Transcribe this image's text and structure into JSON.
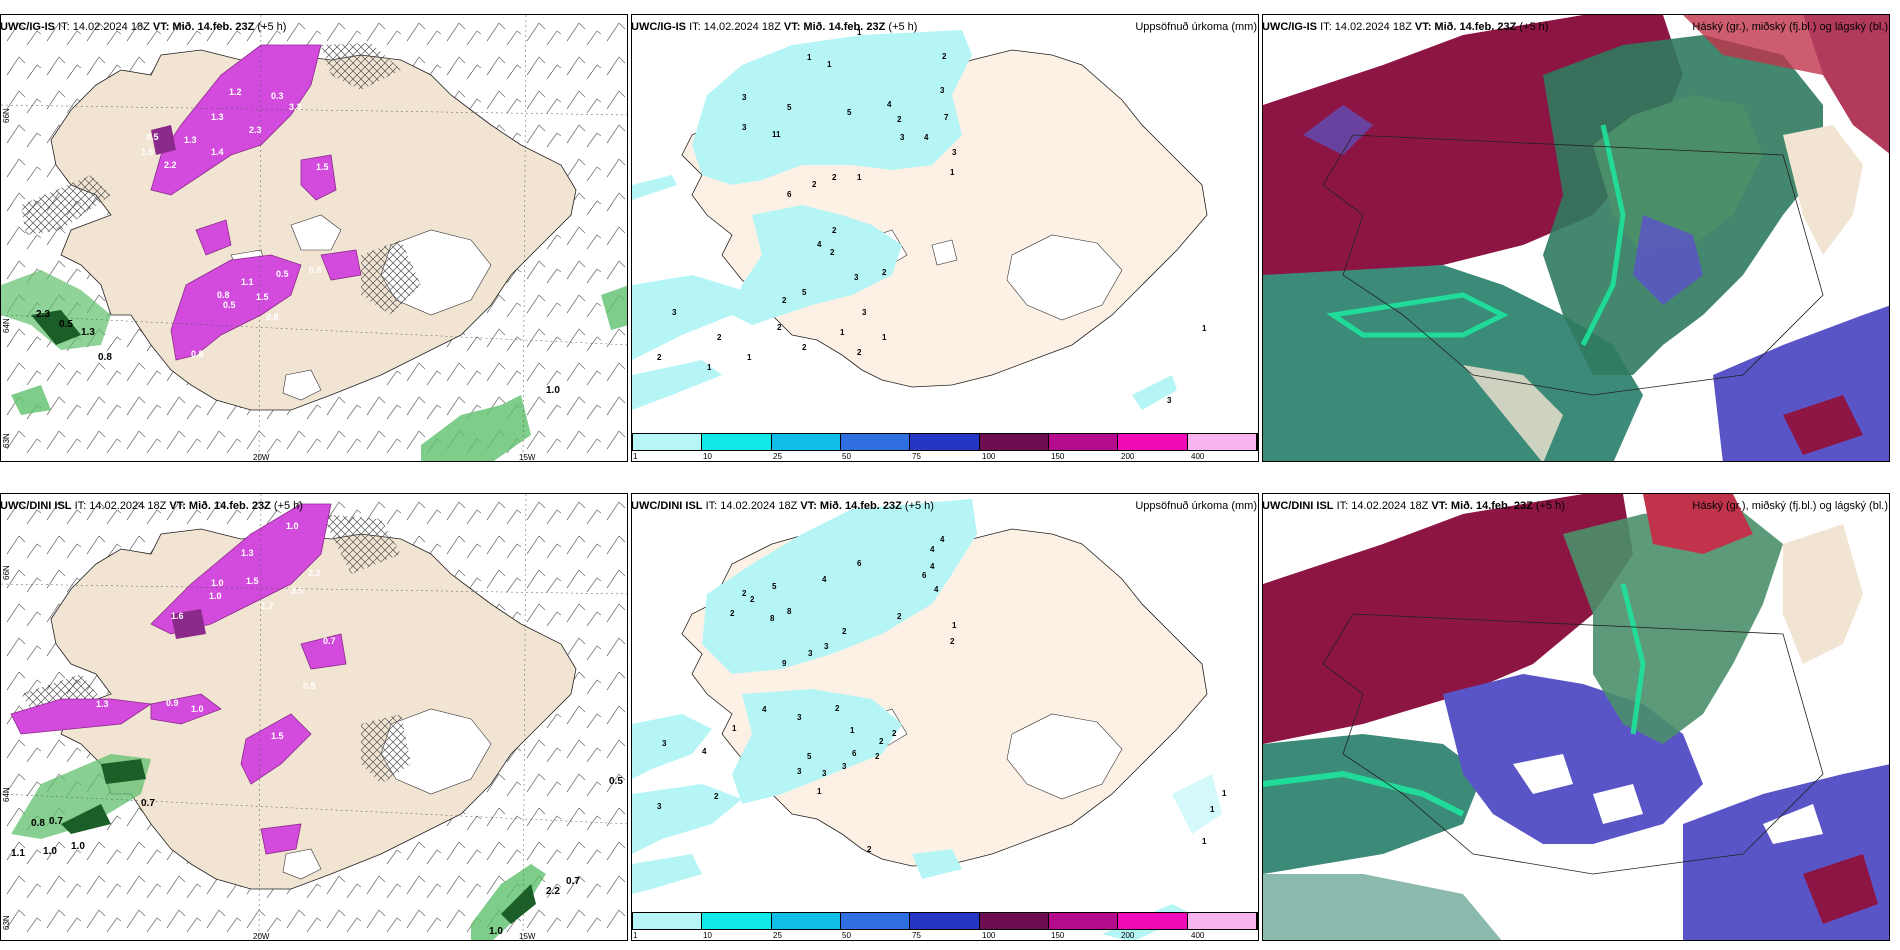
{
  "rows": [
    {
      "model": "UWC/IG-IS",
      "it": "IT: 14.02.2024 18Z",
      "vt_label": "VT:",
      "vt": "Mið. 14.feb. 23Z",
      "lead": "(+5 h)"
    },
    {
      "model": "UWC/DINI ISL",
      "it": "IT: 14.02.2024 18Z",
      "vt_label": "VT:",
      "vt": "Mið. 14.feb. 23Z",
      "lead": "(+5 h)"
    }
  ],
  "panel_titles": {
    "precip": "Uppsöfnuð úrkoma (mm)",
    "cloud": "Háský (gr.), miðský (fj.bl.) og lágský (bl.)"
  },
  "axis_labels": {
    "lat66": "66N",
    "lat64": "64N",
    "lat63": "63N",
    "lon20": "20W",
    "lon15": "15W"
  },
  "colorbar": {
    "labels": [
      "1",
      "10",
      "25",
      "50",
      "75",
      "100",
      "150",
      "200",
      "400"
    ],
    "colors": [
      "#b7f6f7",
      "#12e8e6",
      "#12bde8",
      "#2f6fe0",
      "#2536c4",
      "#6e0d52",
      "#b40c8c",
      "#f10ab8",
      "#f7b4f0"
    ]
  },
  "precip_labels_top": [
    "1",
    "1",
    "1",
    "2",
    "3",
    "3",
    "5",
    "4",
    "2",
    "3",
    "11",
    "5",
    "4",
    "7",
    "3",
    "3",
    "1",
    "6",
    "2",
    "1",
    "2",
    "4",
    "2",
    "2",
    "3",
    "2",
    "2",
    "5",
    "3",
    "2",
    "1",
    "2",
    "2",
    "1",
    "2",
    "1",
    "3",
    "1",
    "2",
    "3",
    "1"
  ],
  "precip_labels_bottom": [
    "4",
    "4",
    "6",
    "4",
    "2",
    "5",
    "8",
    "8",
    "4",
    "6",
    "4",
    "2",
    "2",
    "3",
    "9",
    "2",
    "2",
    "1",
    "3",
    "2",
    "3",
    "2",
    "1",
    "4",
    "6",
    "2",
    "5",
    "2",
    "3",
    "3",
    "3",
    "2",
    "1",
    "3",
    "4",
    "3",
    "1",
    "2",
    "2",
    "1",
    "1",
    "1",
    "3"
  ],
  "wind_labels_top": [
    "1.2",
    "1.3",
    "1.3",
    "0.3",
    "2.3",
    "3.3",
    "1.6",
    "0.5",
    "2.2",
    "1.4",
    "1.5",
    "1.1",
    "0.5",
    "0.8",
    "1.5",
    "0.8",
    "0.8",
    "0.5",
    "0.8",
    "2.3",
    "0.5",
    "1.3",
    "0.8",
    "1.0"
  ],
  "wind_labels_bottom": [
    "1.0",
    "1.3",
    "1.0",
    "1.5",
    "2.2",
    "3.5",
    "1.6",
    "1.7",
    "1.0",
    "0.7",
    "0.5",
    "0.9",
    "1.5",
    "1.3",
    "1.0",
    "0.8",
    "0.7",
    "1.1",
    "1.0",
    "1.0",
    "0.7",
    "2.2",
    "0.7",
    "1.0",
    "0.5"
  ],
  "colors": {
    "land": "#f2e4d3",
    "land_light": "#fcf1e4",
    "purple": "#d24bdc",
    "purple_dark": "#8b2a8a",
    "green": "#5fc06d",
    "green_dark": "#1b5e27",
    "maroon": "#8d1544",
    "teal": "#3c8a78",
    "blue": "#5a55c6",
    "cyan": "#b6f5f6"
  }
}
